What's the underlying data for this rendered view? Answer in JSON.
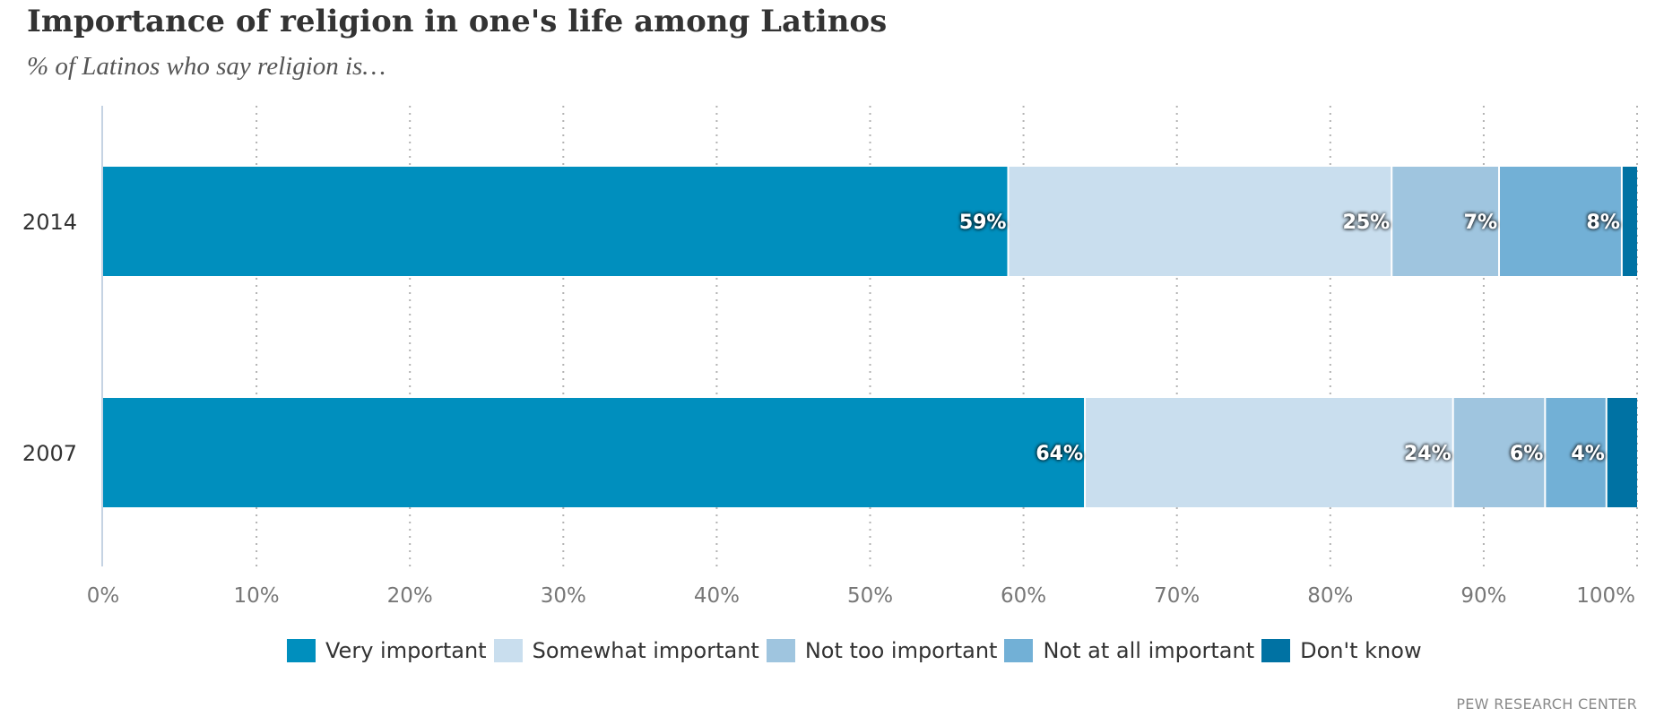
{
  "header": {
    "title": "Importance of religion in one's life among Latinos",
    "subtitle": "% of Latinos who say religion is…"
  },
  "footer": {
    "source": "PEW RESEARCH CENTER"
  },
  "chart_data": {
    "type": "bar",
    "orientation": "horizontal",
    "stacked": true,
    "title": "Importance of religion in one's life among Latinos",
    "subtitle": "% of Latinos who say religion is…",
    "categories": [
      "2014",
      "2007"
    ],
    "series": [
      {
        "name": "Very important",
        "color": "#008fbe",
        "values": [
          59,
          64
        ],
        "labels": [
          "59%",
          "64%"
        ]
      },
      {
        "name": "Somewhat important",
        "color": "#c9deee",
        "values": [
          25,
          24
        ],
        "labels": [
          "25%",
          "24%"
        ]
      },
      {
        "name": "Not too important",
        "color": "#9fc5df",
        "values": [
          7,
          6
        ],
        "labels": [
          "7%",
          "6%"
        ]
      },
      {
        "name": "Not at all important",
        "color": "#72b0d6",
        "values": [
          8,
          4
        ],
        "labels": [
          "8%",
          "4%"
        ]
      },
      {
        "name": "Don't know",
        "color": "#0072a3",
        "values": [
          1,
          2
        ],
        "labels": [
          "",
          ""
        ]
      }
    ],
    "xlabel": "",
    "ylabel": "",
    "xlim": [
      0,
      100
    ],
    "xticks": [
      0,
      10,
      20,
      30,
      40,
      50,
      60,
      70,
      80,
      90,
      100
    ],
    "xtick_labels": [
      "0%",
      "10%",
      "20%",
      "30%",
      "40%",
      "50%",
      "60%",
      "70%",
      "80%",
      "90%",
      "100%"
    ],
    "grid": true,
    "grid_style": "dotted vertical",
    "legend_position": "bottom-center",
    "source": "PEW RESEARCH CENTER"
  }
}
